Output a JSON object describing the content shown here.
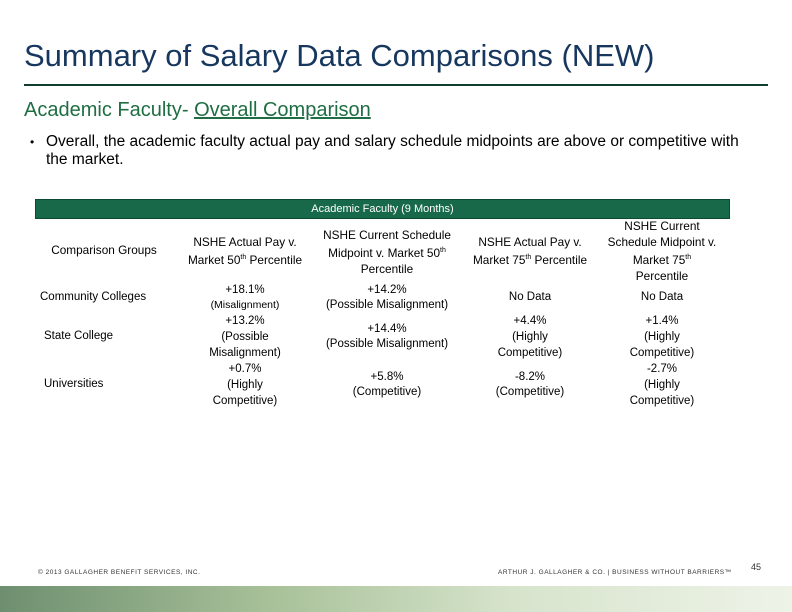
{
  "slide": {
    "title": "Summary of Salary Data Comparisons (NEW)",
    "subtitle_prefix": "Academic Faculty- ",
    "subtitle_underlined": "Overall Comparison",
    "bullet_marker": "•",
    "bullet": "Overall, the academic faculty actual pay and salary schedule midpoints are above or competitive with the market."
  },
  "table": {
    "header": "Academic Faculty (9 Months)",
    "columns": {
      "c0": "Comparison Groups",
      "c1_l1": "NSHE Actual Pay v.",
      "c1_l2_pre": "Market 50",
      "c1_l2_sup": "th",
      "c1_l2_post": " Percentile",
      "c2_l1": "NSHE Current Schedule",
      "c2_l2_pre": "Midpoint v. Market 50",
      "c2_l2_sup": "th",
      "c2_l3": "Percentile",
      "c3_l1": "NSHE Actual Pay v.",
      "c3_l2_pre": "Market 75",
      "c3_l2_sup": "th",
      "c3_l2_post": " Percentile",
      "c4_l1": "NSHE Current",
      "c4_l2": "Schedule Midpoint v.",
      "c4_l3_pre": "Market 75",
      "c4_l3_sup": "th",
      "c4_l4": "Percentile"
    },
    "rows": {
      "r1": {
        "label": "Community Colleges",
        "c1_l1": "+18.1%",
        "c1_l2": "(Misalignment)",
        "c2_l1": "+14.2%",
        "c2_l2": "(Possible Misalignment)",
        "c3": "No Data",
        "c4": "No Data"
      },
      "r2": {
        "label": "State College",
        "c1_l1": "+13.2%",
        "c1_l2": "(Possible",
        "c1_l3": "Misalignment)",
        "c2_l1": "+14.4%",
        "c2_l2": "(Possible Misalignment)",
        "c3_l1": "+4.4%",
        "c3_l2": "(Highly",
        "c3_l3": "Competitive)",
        "c4_l1": "+1.4%",
        "c4_l2": "(Highly",
        "c4_l3": "Competitive)"
      },
      "r3": {
        "label": "Universities",
        "c1_l1": "+0.7%",
        "c1_l2": "(Highly",
        "c1_l3": "Competitive)",
        "c2_l1": "+5.8%",
        "c2_l2": "(Competitive)",
        "c3_l1": "-8.2%",
        "c3_l2": "(Competitive)",
        "c4_l1": "-2.7%",
        "c4_l2": "(Highly",
        "c4_l3": "Competitive)"
      }
    }
  },
  "footer": {
    "left": "© 2013 GALLAGHER BENEFIT SERVICES, INC.",
    "right": "ARTHUR J. GALLAGHER & CO. | BUSINESS WITHOUT BARRIERS™",
    "page": "45"
  },
  "colors": {
    "title": "#17375e",
    "subtitle": "#1f6e43",
    "table_header_bg": "#17694a"
  }
}
